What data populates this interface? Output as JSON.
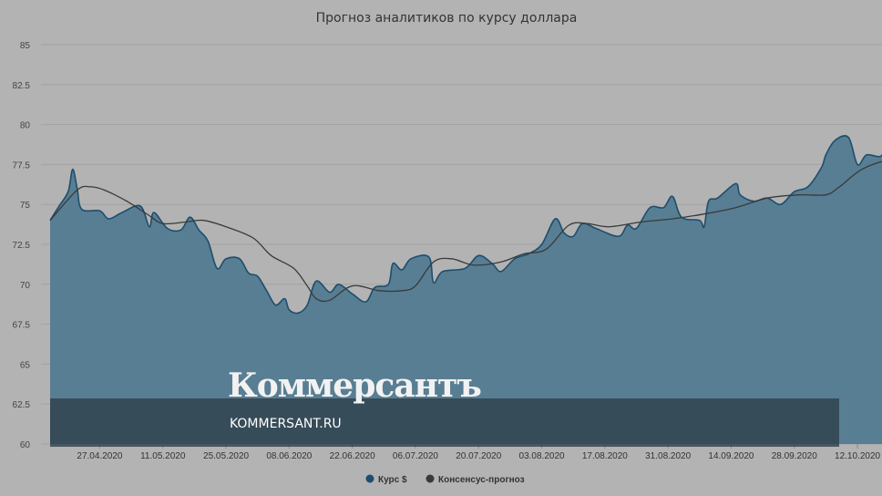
{
  "chart_data": {
    "type": "area",
    "title": "Прогноз аналитиков по курсу доллара",
    "xlabel": "",
    "ylabel": "",
    "ylim": [
      60,
      85
    ],
    "yticks": [
      "85",
      "82.5",
      "80",
      "77.5",
      "75",
      "72.5",
      "70",
      "67.5",
      "65",
      "62.5",
      "60"
    ],
    "xticks": [
      "27.04.2020",
      "11.05.2020",
      "25.05.2020",
      "08.06.2020",
      "22.06.2020",
      "06.07.2020",
      "20.07.2020",
      "03.08.2020",
      "17.08.2020",
      "31.08.2020",
      "14.09.2020",
      "28.09.2020",
      "12.10.2020"
    ],
    "grid": true,
    "legend_position": "bottom-center",
    "series": [
      {
        "name": "Курс $",
        "color": "#1d4e6e",
        "fill": "#587e93",
        "points": [
          [
            "2020-04-16",
            74.0
          ],
          [
            "2020-04-18",
            74.9
          ],
          [
            "2020-04-20",
            75.8
          ],
          [
            "2020-04-21",
            77.2
          ],
          [
            "2020-04-22",
            76.0
          ],
          [
            "2020-04-23",
            74.7
          ],
          [
            "2020-04-27",
            74.6
          ],
          [
            "2020-04-29",
            74.1
          ],
          [
            "2020-05-02",
            74.5
          ],
          [
            "2020-05-06",
            74.9
          ],
          [
            "2020-05-08",
            73.6
          ],
          [
            "2020-05-09",
            74.5
          ],
          [
            "2020-05-12",
            73.5
          ],
          [
            "2020-05-15",
            73.4
          ],
          [
            "2020-05-17",
            74.2
          ],
          [
            "2020-05-19",
            73.4
          ],
          [
            "2020-05-21",
            72.7
          ],
          [
            "2020-05-23",
            71.0
          ],
          [
            "2020-05-25",
            71.6
          ],
          [
            "2020-05-28",
            71.6
          ],
          [
            "2020-05-30",
            70.7
          ],
          [
            "2020-06-01",
            70.5
          ],
          [
            "2020-06-03",
            69.6
          ],
          [
            "2020-06-05",
            68.7
          ],
          [
            "2020-06-07",
            69.1
          ],
          [
            "2020-06-08",
            68.4
          ],
          [
            "2020-06-10",
            68.2
          ],
          [
            "2020-06-12",
            68.7
          ],
          [
            "2020-06-14",
            70.2
          ],
          [
            "2020-06-17",
            69.5
          ],
          [
            "2020-06-19",
            70.0
          ],
          [
            "2020-06-22",
            69.4
          ],
          [
            "2020-06-25",
            68.9
          ],
          [
            "2020-06-27",
            69.8
          ],
          [
            "2020-06-30",
            70.0
          ],
          [
            "2020-07-01",
            71.3
          ],
          [
            "2020-07-03",
            70.9
          ],
          [
            "2020-07-05",
            71.6
          ],
          [
            "2020-07-09",
            71.7
          ],
          [
            "2020-07-10",
            70.1
          ],
          [
            "2020-07-12",
            70.8
          ],
          [
            "2020-07-17",
            71.0
          ],
          [
            "2020-07-20",
            71.8
          ],
          [
            "2020-07-23",
            71.3
          ],
          [
            "2020-07-25",
            70.8
          ],
          [
            "2020-07-28",
            71.6
          ],
          [
            "2020-07-31",
            71.9
          ],
          [
            "2020-08-03",
            72.5
          ],
          [
            "2020-08-06",
            74.1
          ],
          [
            "2020-08-08",
            73.2
          ],
          [
            "2020-08-10",
            73.0
          ],
          [
            "2020-08-12",
            73.8
          ],
          [
            "2020-08-15",
            73.5
          ],
          [
            "2020-08-20",
            73.0
          ],
          [
            "2020-08-22",
            73.7
          ],
          [
            "2020-08-24",
            73.5
          ],
          [
            "2020-08-27",
            74.8
          ],
          [
            "2020-08-30",
            74.8
          ],
          [
            "2020-09-01",
            75.5
          ],
          [
            "2020-09-03",
            74.2
          ],
          [
            "2020-09-07",
            74.0
          ],
          [
            "2020-09-08",
            73.6
          ],
          [
            "2020-09-09",
            75.2
          ],
          [
            "2020-09-11",
            75.4
          ],
          [
            "2020-09-15",
            76.3
          ],
          [
            "2020-09-16",
            75.6
          ],
          [
            "2020-09-19",
            75.2
          ],
          [
            "2020-09-22",
            75.4
          ],
          [
            "2020-09-25",
            75.0
          ],
          [
            "2020-09-28",
            75.8
          ],
          [
            "2020-10-01",
            76.1
          ],
          [
            "2020-10-04",
            77.3
          ],
          [
            "2020-10-05",
            78.1
          ],
          [
            "2020-10-07",
            79.0
          ],
          [
            "2020-10-10",
            79.2
          ],
          [
            "2020-10-12",
            77.5
          ],
          [
            "2020-10-14",
            78.1
          ],
          [
            "2020-10-17",
            78.0
          ],
          [
            "2020-10-19",
            78.5
          ],
          [
            "2020-10-21",
            77.8
          ],
          [
            "2020-10-23",
            76.8
          ]
        ]
      },
      {
        "name": "Консенсус-прогноз",
        "color": "#3a3a3a",
        "points": [
          [
            "2020-04-16",
            74.0
          ],
          [
            "2020-04-22",
            75.9
          ],
          [
            "2020-04-25",
            76.1
          ],
          [
            "2020-04-28",
            75.9
          ],
          [
            "2020-05-03",
            75.2
          ],
          [
            "2020-05-08",
            74.3
          ],
          [
            "2020-05-11",
            73.8
          ],
          [
            "2020-05-16",
            73.9
          ],
          [
            "2020-05-20",
            74.0
          ],
          [
            "2020-05-25",
            73.6
          ],
          [
            "2020-05-31",
            72.9
          ],
          [
            "2020-06-04",
            71.8
          ],
          [
            "2020-06-09",
            71.0
          ],
          [
            "2020-06-12",
            69.9
          ],
          [
            "2020-06-14",
            69.1
          ],
          [
            "2020-06-17",
            69.0
          ],
          [
            "2020-06-22",
            69.9
          ],
          [
            "2020-06-28",
            69.6
          ],
          [
            "2020-07-03",
            69.6
          ],
          [
            "2020-07-06",
            69.9
          ],
          [
            "2020-07-10",
            71.4
          ],
          [
            "2020-07-14",
            71.6
          ],
          [
            "2020-07-19",
            71.2
          ],
          [
            "2020-07-25",
            71.4
          ],
          [
            "2020-07-30",
            71.9
          ],
          [
            "2020-08-04",
            72.2
          ],
          [
            "2020-08-09",
            73.7
          ],
          [
            "2020-08-13",
            73.8
          ],
          [
            "2020-08-18",
            73.6
          ],
          [
            "2020-08-25",
            73.9
          ],
          [
            "2020-09-01",
            74.1
          ],
          [
            "2020-09-08",
            74.4
          ],
          [
            "2020-09-15",
            74.8
          ],
          [
            "2020-09-22",
            75.4
          ],
          [
            "2020-09-29",
            75.6
          ],
          [
            "2020-10-05",
            75.6
          ],
          [
            "2020-10-08",
            76.1
          ],
          [
            "2020-10-13",
            77.2
          ],
          [
            "2020-10-19",
            77.8
          ],
          [
            "2020-10-24",
            77.9
          ],
          [
            "2020-10-28",
            77.6
          ],
          [
            "2020-11-01",
            76.8
          ]
        ]
      }
    ]
  },
  "watermark": {
    "logo": "Коммерсантъ",
    "url": "KOMMERSANT.RU"
  }
}
